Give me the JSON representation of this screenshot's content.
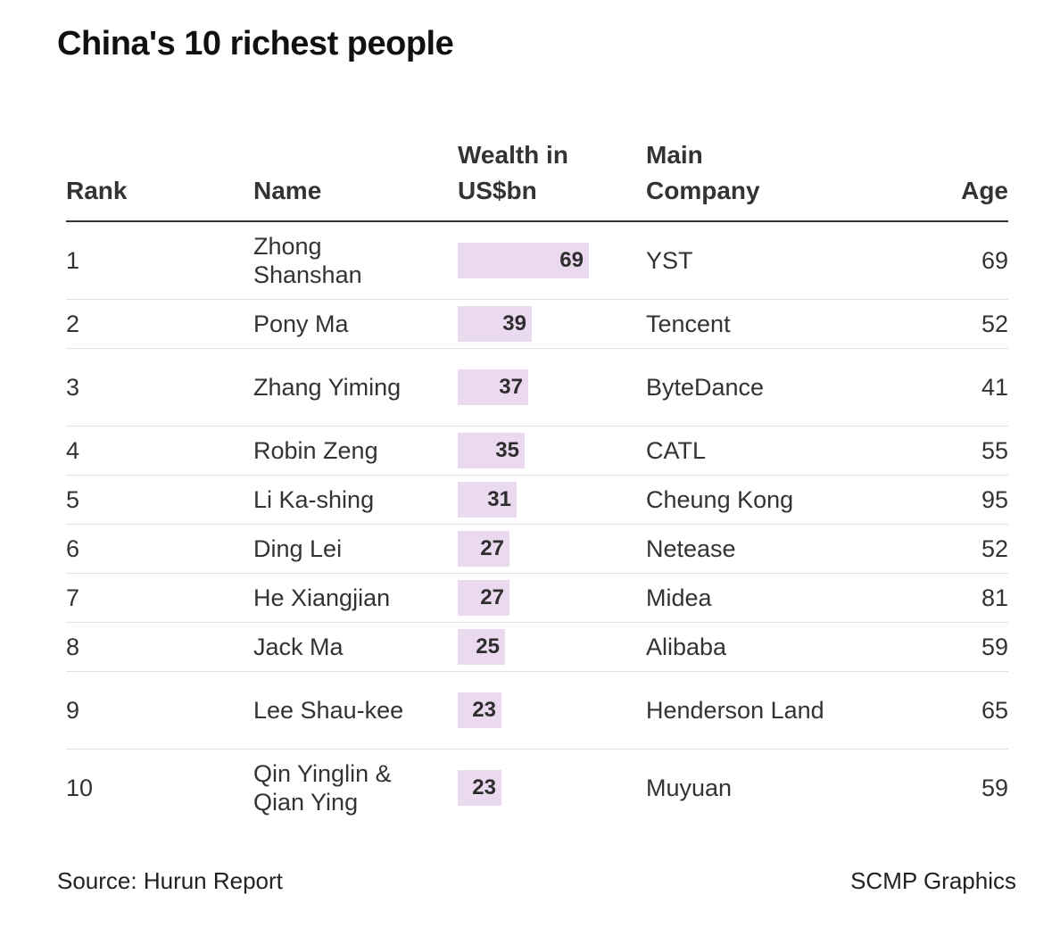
{
  "title": "China's 10 richest people",
  "headers": {
    "rank": "Rank",
    "name": "Name",
    "wealth_line1": "Wealth in",
    "wealth_line2": "US$bn",
    "company_line1": "Main",
    "company_line2": "Company",
    "age": "Age"
  },
  "chart_data": {
    "type": "table",
    "title": "China's 10 richest people",
    "columns": [
      "Rank",
      "Name",
      "Wealth in US$bn",
      "Main Company",
      "Age"
    ],
    "rows": [
      {
        "rank": "1",
        "name": "Zhong Shanshan",
        "wealth": 69,
        "company": "YST",
        "age": "69"
      },
      {
        "rank": "2",
        "name": "Pony Ma",
        "wealth": 39,
        "company": "Tencent",
        "age": "52"
      },
      {
        "rank": "3",
        "name": "Zhang Yiming",
        "wealth": 37,
        "company": "ByteDance",
        "age": "41"
      },
      {
        "rank": "4",
        "name": "Robin Zeng",
        "wealth": 35,
        "company": "CATL",
        "age": "55"
      },
      {
        "rank": "5",
        "name": "Li Ka-shing",
        "wealth": 31,
        "company": "Cheung Kong",
        "age": "95"
      },
      {
        "rank": "6",
        "name": "Ding Lei",
        "wealth": 27,
        "company": "Netease",
        "age": "52"
      },
      {
        "rank": "7",
        "name": "He Xiangjian",
        "wealth": 27,
        "company": "Midea",
        "age": "81"
      },
      {
        "rank": "8",
        "name": "Jack Ma",
        "wealth": 25,
        "company": "Alibaba",
        "age": "59"
      },
      {
        "rank": "9",
        "name": "Lee Shau-kee",
        "wealth": 23,
        "company": "Henderson Land",
        "age": "65"
      },
      {
        "rank": "10",
        "name": "Qin Yinglin & Qian Ying",
        "wealth": 23,
        "company": "Muyuan",
        "age": "59"
      }
    ],
    "bar_color": "#ead9ef"
  },
  "footer": {
    "source": "Source: Hurun Report",
    "credit": "SCMP Graphics"
  }
}
